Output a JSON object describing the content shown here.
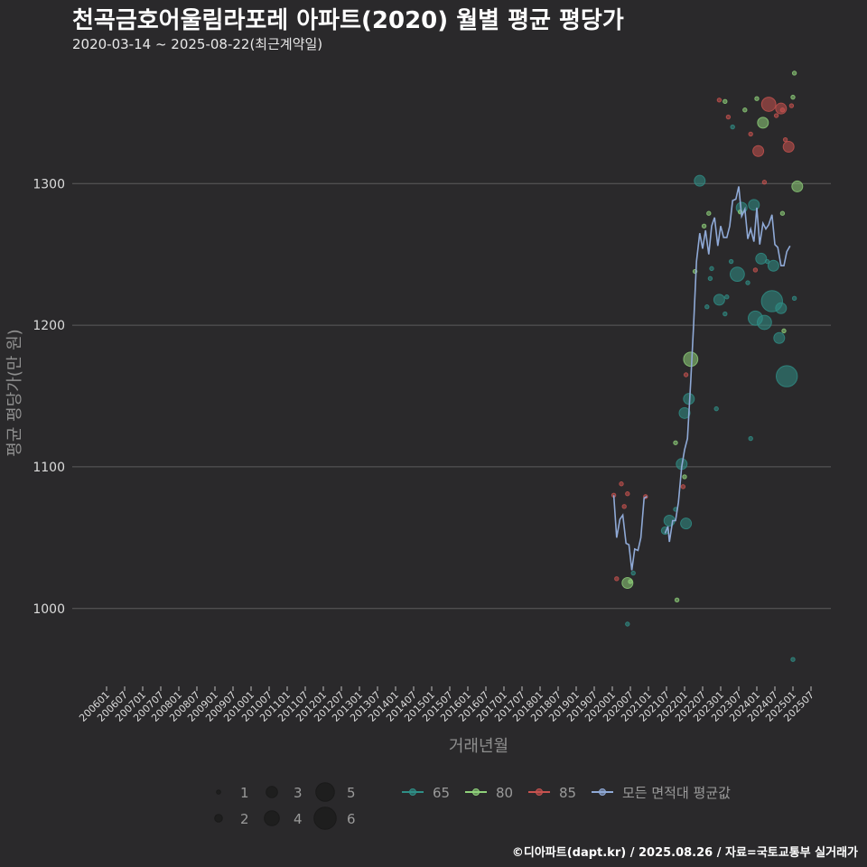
{
  "header": {
    "title": "천곡금호어울림라포레 아파트(2020) 월별 평균 평당가",
    "subtitle": "2020-03-14 ~ 2025-08-22(최근계약일)"
  },
  "footer": {
    "credit": "©디아파트(dapt.kr) / 2025.08.26 / 자료=국토교통부 실거래가"
  },
  "colors": {
    "background": "#2a292b",
    "grid": "#5c5c5c",
    "s65": "#2f8f87",
    "s80": "#8fd17a",
    "s85": "#c7524f",
    "avg": "#8fa9d6"
  },
  "chart_data": {
    "type": "scatter",
    "title": "천곡금호어울림라포레 아파트(2020) 월별 평균 평당가",
    "xlabel": "거래년월",
    "ylabel": "평균 평당가(만 원)",
    "ylim": [
      945,
      1385
    ],
    "yticks": [
      1000,
      1100,
      1200,
      1300
    ],
    "xlim": [
      2006.0,
      2025.75
    ],
    "xtick_labels": [
      "200601",
      "200607",
      "200701",
      "200707",
      "200801",
      "200807",
      "200901",
      "200907",
      "201001",
      "201007",
      "201101",
      "201107",
      "201201",
      "201207",
      "201301",
      "201307",
      "201401",
      "201407",
      "201501",
      "201507",
      "201601",
      "201607",
      "201701",
      "201707",
      "201801",
      "201807",
      "201901",
      "201907",
      "202001",
      "202007",
      "202101",
      "202107",
      "202201",
      "202207",
      "202301",
      "202307",
      "202401",
      "202407",
      "202501",
      "202507"
    ],
    "size_legend": {
      "title": "",
      "values": [
        1,
        2,
        3,
        4,
        5,
        6
      ]
    },
    "color_legend": [
      {
        "key": "s65",
        "label": "65"
      },
      {
        "key": "s80",
        "label": "80"
      },
      {
        "key": "s85",
        "label": "85"
      },
      {
        "key": "avg",
        "label": "모든 면적대 평균값"
      }
    ],
    "series": [
      {
        "name": "65",
        "key": "s65",
        "points": [
          [
            2020.42,
            989,
            1
          ],
          [
            2020.58,
            1025,
            1
          ],
          [
            2021.46,
            1055,
            2
          ],
          [
            2021.58,
            1062,
            3
          ],
          [
            2021.75,
            1070,
            1
          ],
          [
            2021.92,
            1102,
            3
          ],
          [
            2022.0,
            1138,
            3
          ],
          [
            2022.04,
            1060,
            3
          ],
          [
            2022.12,
            1148,
            3
          ],
          [
            2022.42,
            1302,
            3
          ],
          [
            2022.62,
            1213,
            1
          ],
          [
            2022.71,
            1233,
            1
          ],
          [
            2022.75,
            1240,
            1
          ],
          [
            2022.88,
            1141,
            1
          ],
          [
            2022.96,
            1218,
            3
          ],
          [
            2023.12,
            1208,
            1
          ],
          [
            2023.17,
            1220,
            1
          ],
          [
            2023.29,
            1245,
            1
          ],
          [
            2023.33,
            1340,
            1
          ],
          [
            2023.46,
            1236,
            4
          ],
          [
            2023.58,
            1283,
            3
          ],
          [
            2023.75,
            1230,
            1
          ],
          [
            2023.83,
            1120,
            1
          ],
          [
            2023.92,
            1285,
            3
          ],
          [
            2023.96,
            1205,
            4
          ],
          [
            2024.12,
            1247,
            3
          ],
          [
            2024.21,
            1202,
            4
          ],
          [
            2024.29,
            1245,
            1
          ],
          [
            2024.42,
            1217,
            6
          ],
          [
            2024.46,
            1242,
            3
          ],
          [
            2024.62,
            1191,
            3
          ],
          [
            2024.67,
            1212,
            3
          ],
          [
            2024.83,
            1164,
            6
          ],
          [
            2025.0,
            964,
            1
          ],
          [
            2025.04,
            1219,
            1
          ]
        ]
      },
      {
        "name": "80",
        "key": "s80",
        "points": [
          [
            2020.42,
            1018,
            3
          ],
          [
            2020.5,
            1019,
            1
          ],
          [
            2021.75,
            1117,
            1
          ],
          [
            2021.79,
            1006,
            1
          ],
          [
            2022.0,
            1093,
            1
          ],
          [
            2022.17,
            1176,
            4
          ],
          [
            2022.29,
            1238,
            1
          ],
          [
            2022.54,
            1270,
            1
          ],
          [
            2022.67,
            1279,
            1
          ],
          [
            2023.12,
            1358,
            1
          ],
          [
            2023.54,
            1280,
            1
          ],
          [
            2023.67,
            1352,
            1
          ],
          [
            2024.0,
            1360,
            1
          ],
          [
            2024.17,
            1343,
            3
          ],
          [
            2024.71,
            1279,
            1
          ],
          [
            2024.75,
            1196,
            1
          ],
          [
            2025.0,
            1361,
            1
          ],
          [
            2025.04,
            1378,
            1
          ],
          [
            2025.12,
            1298,
            3
          ]
        ]
      },
      {
        "name": "85",
        "key": "s85",
        "points": [
          [
            2020.04,
            1080,
            1
          ],
          [
            2020.12,
            1021,
            1
          ],
          [
            2020.25,
            1088,
            1
          ],
          [
            2020.33,
            1072,
            1
          ],
          [
            2020.42,
            1081,
            1
          ],
          [
            2020.92,
            1079,
            1
          ],
          [
            2021.96,
            1086,
            1
          ],
          [
            2022.04,
            1165,
            1
          ],
          [
            2022.96,
            1359,
            1
          ],
          [
            2023.21,
            1347,
            1
          ],
          [
            2023.83,
            1335,
            1
          ],
          [
            2023.96,
            1239,
            1
          ],
          [
            2024.04,
            1323,
            3
          ],
          [
            2024.21,
            1301,
            1
          ],
          [
            2024.33,
            1356,
            4
          ],
          [
            2024.54,
            1348,
            1
          ],
          [
            2024.67,
            1353,
            3
          ],
          [
            2024.71,
            1352,
            1
          ],
          [
            2024.79,
            1331,
            1
          ],
          [
            2024.88,
            1326,
            3
          ],
          [
            2024.96,
            1355,
            1
          ]
        ]
      }
    ],
    "average_line": {
      "name": "모든 면적대 평균값",
      "segments": [
        [
          [
            2020.04,
            1080
          ],
          [
            2020.12,
            1050
          ],
          [
            2020.21,
            1063
          ],
          [
            2020.29,
            1066
          ],
          [
            2020.38,
            1046
          ],
          [
            2020.46,
            1045
          ],
          [
            2020.54,
            1027
          ],
          [
            2020.62,
            1042
          ],
          [
            2020.71,
            1041
          ],
          [
            2020.79,
            1050
          ],
          [
            2020.88,
            1078
          ],
          [
            2020.96,
            1079
          ]
        ],
        [
          [
            2021.46,
            1053
          ],
          [
            2021.54,
            1058
          ],
          [
            2021.58,
            1047
          ],
          [
            2021.67,
            1062
          ],
          [
            2021.75,
            1062
          ],
          [
            2021.83,
            1075
          ],
          [
            2021.92,
            1100
          ],
          [
            2022.0,
            1112
          ],
          [
            2022.08,
            1120
          ],
          [
            2022.17,
            1160
          ],
          [
            2022.25,
            1200
          ],
          [
            2022.33,
            1245
          ],
          [
            2022.42,
            1265
          ],
          [
            2022.5,
            1254
          ],
          [
            2022.58,
            1267
          ],
          [
            2022.67,
            1250
          ],
          [
            2022.75,
            1270
          ],
          [
            2022.83,
            1276
          ],
          [
            2022.92,
            1256
          ],
          [
            2023.0,
            1270
          ],
          [
            2023.08,
            1262
          ],
          [
            2023.17,
            1262
          ],
          [
            2023.25,
            1270
          ],
          [
            2023.33,
            1288
          ],
          [
            2023.42,
            1289
          ],
          [
            2023.5,
            1298
          ],
          [
            2023.58,
            1277
          ],
          [
            2023.67,
            1282
          ],
          [
            2023.75,
            1261
          ],
          [
            2023.83,
            1268
          ],
          [
            2023.92,
            1259
          ],
          [
            2024.0,
            1283
          ],
          [
            2024.08,
            1257
          ],
          [
            2024.17,
            1272
          ],
          [
            2024.25,
            1268
          ],
          [
            2024.33,
            1271
          ],
          [
            2024.42,
            1278
          ],
          [
            2024.5,
            1257
          ],
          [
            2024.58,
            1255
          ],
          [
            2024.67,
            1242
          ],
          [
            2024.75,
            1242
          ],
          [
            2024.83,
            1252
          ],
          [
            2024.92,
            1256
          ]
        ]
      ]
    }
  }
}
